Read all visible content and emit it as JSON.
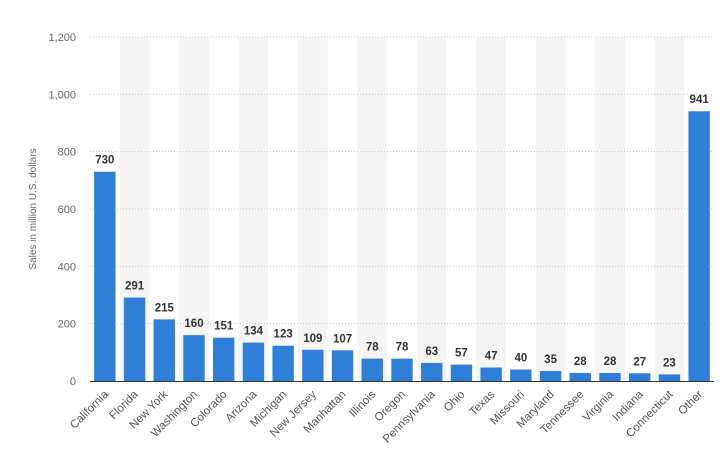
{
  "chart_data": {
    "type": "bar",
    "title": "",
    "xlabel": "",
    "ylabel": "Sales in million U.S. dollars",
    "ylim": [
      0,
      1200
    ],
    "yticks": [
      0,
      200,
      400,
      600,
      800,
      1000,
      1200
    ],
    "ytick_labels": [
      "0",
      "200",
      "400",
      "600",
      "800",
      "1,000",
      "1,200"
    ],
    "categories": [
      "California",
      "Florida",
      "New York",
      "Washington",
      "Colorado",
      "Arizona",
      "Michigan",
      "New Jersey",
      "Manhattan",
      "Illinois",
      "Oregon",
      "Pennsylvania",
      "Ohio",
      "Texas",
      "Missouri",
      "Maryland",
      "Tennessee",
      "Virginia",
      "Indiana",
      "Connecticut",
      "Other"
    ],
    "values": [
      730,
      291,
      215,
      160,
      151,
      134,
      123,
      109,
      107,
      78,
      78,
      63,
      57,
      47,
      40,
      35,
      28,
      28,
      27,
      23,
      941
    ],
    "bar_color": "#2f7ed8",
    "grid": true,
    "legend": "none"
  }
}
